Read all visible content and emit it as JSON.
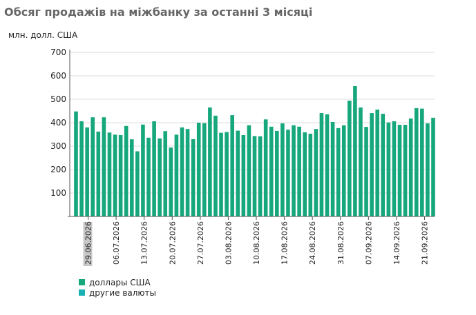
{
  "title": "Обсяг продажів на міжбанку за останні 3 місяці",
  "colors": {
    "usd": "#16a77c",
    "other": "#1ab1b5",
    "grid": "#dcdcdc",
    "axis": "#555555",
    "highlight": "#c8c8c8"
  },
  "legend": [
    {
      "label": "доллары США",
      "color": "#16a77c"
    },
    {
      "label": "другие валюты",
      "color": "#1ab1b5"
    }
  ],
  "chart_data": {
    "type": "bar",
    "title": "Обсяг продажів на міжбанку за останні 3 місяці",
    "ylabel": "млн. долл. США",
    "ylim": [
      0,
      700
    ],
    "yticks": [
      100,
      200,
      300,
      400,
      500,
      600,
      700
    ],
    "grid": true,
    "legend_position": "bottom-left",
    "x_tick_labels": [
      "29.06.2026",
      "06.07.2026",
      "13.07.2026",
      "20.07.2026",
      "27.07.2026",
      "03.08.2026",
      "10.08.2026",
      "17.08.2026",
      "24.08.2026",
      "31.08.2026",
      "07.09.2026",
      "14.09.2026",
      "21.09.2026"
    ],
    "highlighted_label": "29.06.2026",
    "series": [
      {
        "name": "доллары США",
        "values": [
          448,
          406,
          380,
          423,
          362,
          423,
          358,
          349,
          347,
          386,
          329,
          278,
          392,
          336,
          406,
          333,
          364,
          294,
          349,
          380,
          373,
          330,
          400,
          398,
          465,
          430,
          357,
          360,
          432,
          366,
          347,
          389,
          343,
          342,
          414,
          383,
          365,
          397,
          370,
          389,
          383,
          359,
          353,
          373,
          441,
          436,
          403,
          377,
          389,
          494,
          556,
          465,
          382,
          441,
          456,
          438,
          401,
          406,
          391,
          391,
          418,
          462,
          460,
          397,
          421
        ]
      },
      {
        "name": "другие валюты",
        "values": []
      }
    ]
  }
}
